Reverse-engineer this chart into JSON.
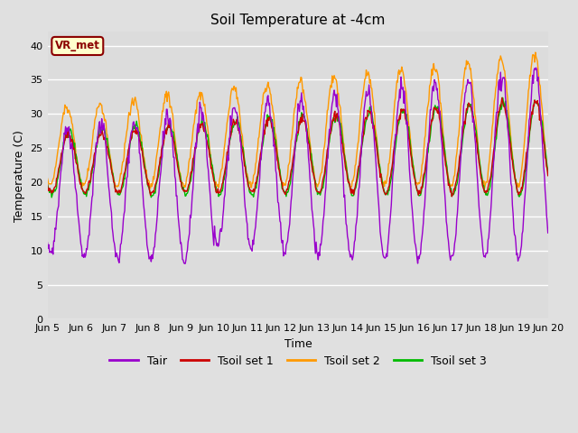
{
  "title": "Soil Temperature at -4cm",
  "xlabel": "Time",
  "ylabel": "Temperature (C)",
  "ylim": [
    0,
    42
  ],
  "yticks": [
    0,
    5,
    10,
    15,
    20,
    25,
    30,
    35,
    40
  ],
  "fig_bg_color": "#e0e0e0",
  "plot_bg_color": "#dcdcdc",
  "grid_color": "#ffffff",
  "colors": {
    "Tair": "#9900cc",
    "Tsoil1": "#cc0000",
    "Tsoil2": "#ff9900",
    "Tsoil3": "#00bb00"
  },
  "annotation_text": "VR_met",
  "annotation_bg": "#ffffcc",
  "annotation_fg": "#8b0000",
  "days": 15,
  "points_per_day": 48,
  "start_day": 5
}
